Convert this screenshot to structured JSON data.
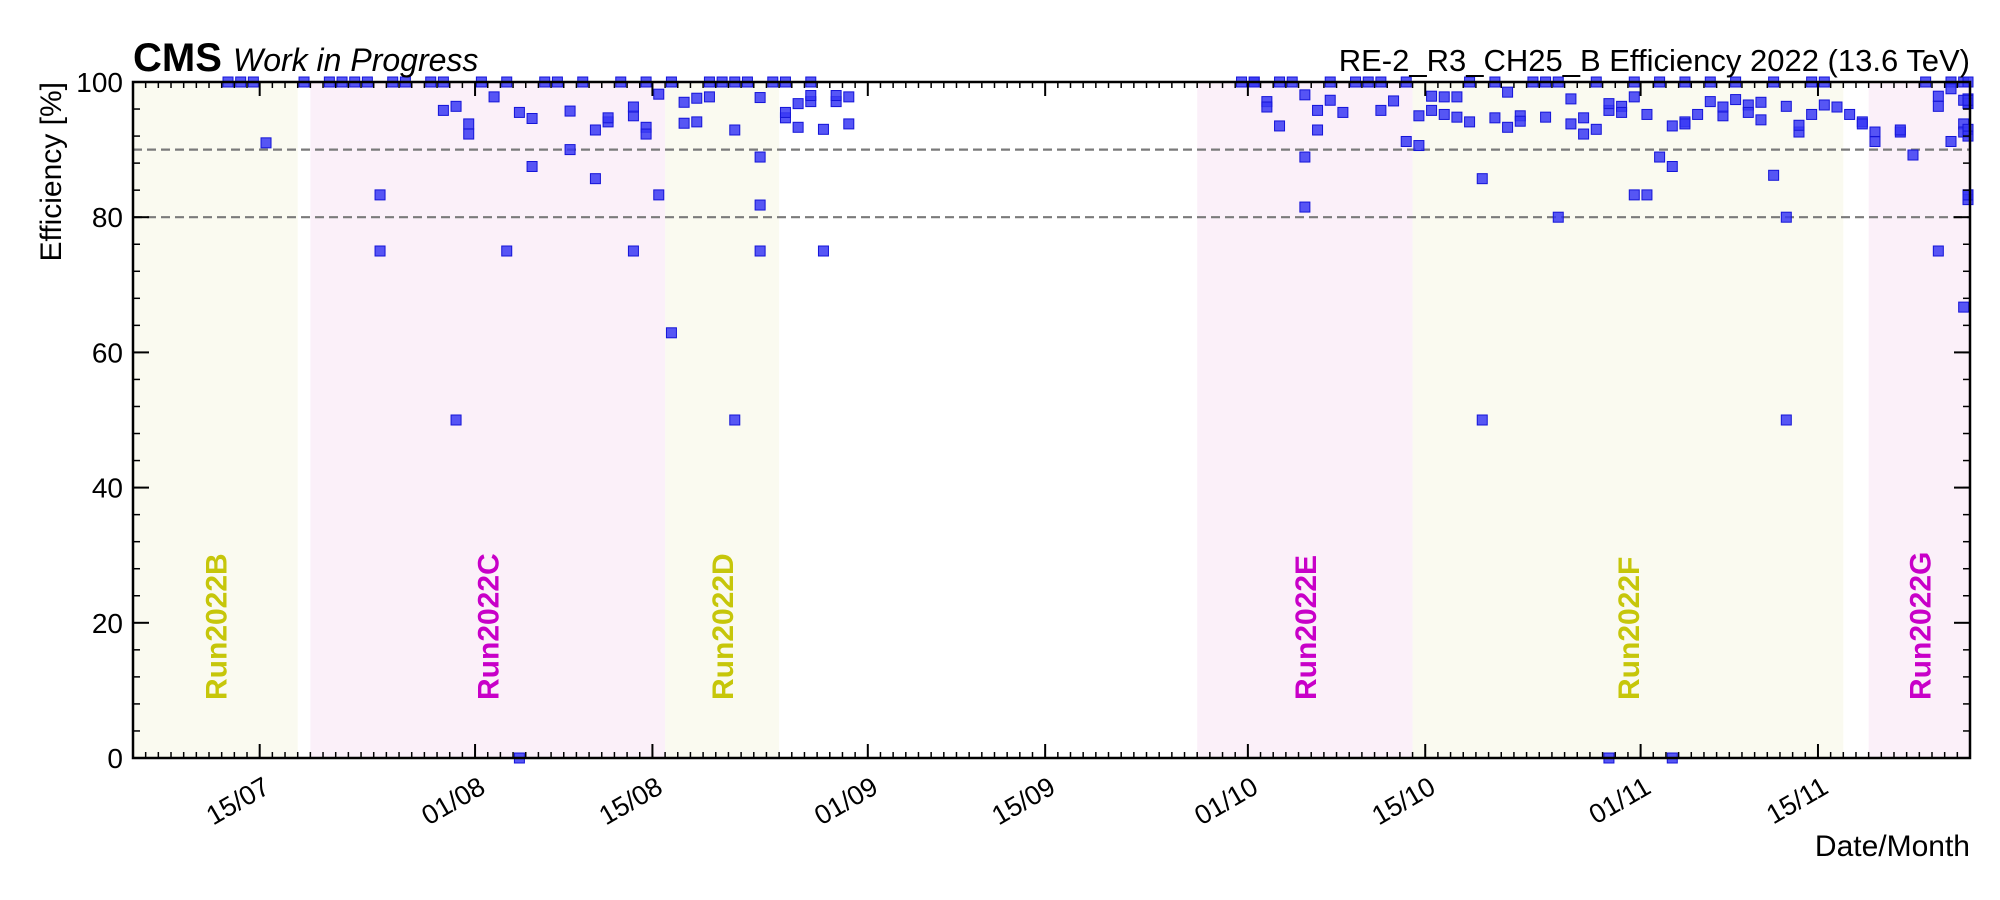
{
  "header": {
    "experiment": "CMS",
    "status": "Work in Progress",
    "right_title": "RE-2_R3_CH25_B Efficiency 2022 (13.6 TeV)"
  },
  "chart_data": {
    "type": "scatter",
    "xlabel": "Date/Month",
    "ylabel": "Efficiency [%]",
    "xlim": [
      "2022-07-05",
      "2022-11-27"
    ],
    "ylim": [
      0,
      100
    ],
    "x_tick_labels": [
      {
        "date": "2022-07-15",
        "label": "15/07"
      },
      {
        "date": "2022-08-01",
        "label": "01/08"
      },
      {
        "date": "2022-08-15",
        "label": "15/08"
      },
      {
        "date": "2022-09-01",
        "label": "01/09"
      },
      {
        "date": "2022-09-15",
        "label": "15/09"
      },
      {
        "date": "2022-10-01",
        "label": "01/10"
      },
      {
        "date": "2022-10-15",
        "label": "15/10"
      },
      {
        "date": "2022-11-01",
        "label": "01/11"
      },
      {
        "date": "2022-11-15",
        "label": "15/11"
      }
    ],
    "y_tick_labels": [
      0,
      20,
      40,
      60,
      80,
      100
    ],
    "reference_lines": [
      80,
      90
    ],
    "runs": [
      {
        "name": "Run2022B",
        "start": "2022-07-05",
        "end": "2022-07-18",
        "color": "#c6c60a",
        "bg": "#fafaf0"
      },
      {
        "name": "Run2022C",
        "start": "2022-07-19",
        "end": "2022-08-16",
        "color": "#c800c8",
        "bg": "#fbf0f9"
      },
      {
        "name": "Run2022D",
        "start": "2022-08-16",
        "end": "2022-08-25",
        "color": "#c6c60a",
        "bg": "#fafaf0"
      },
      {
        "name": "Run2022E",
        "start": "2022-09-27",
        "end": "2022-10-14",
        "color": "#c800c8",
        "bg": "#fbf0f9"
      },
      {
        "name": "Run2022F",
        "start": "2022-10-14",
        "end": "2022-11-17",
        "color": "#c6c60a",
        "bg": "#fafaf0"
      },
      {
        "name": "Run2022G",
        "start": "2022-11-19",
        "end": "2022-11-27",
        "color": "#c800c8",
        "bg": "#fbf0f9"
      }
    ],
    "marker_color": "#3838f5",
    "series": [
      {
        "points": [
          [
            "2022-07-12",
            100
          ],
          [
            "2022-07-13",
            100
          ],
          [
            "2022-07-14",
            100
          ],
          [
            "2022-07-15",
            91
          ],
          [
            "2022-07-18",
            100
          ],
          [
            "2022-07-20",
            100
          ],
          [
            "2022-07-21",
            100
          ],
          [
            "2022-07-22",
            100
          ],
          [
            "2022-07-23",
            100
          ],
          [
            "2022-07-24",
            83.3
          ],
          [
            "2022-07-24",
            75
          ],
          [
            "2022-07-25",
            100
          ],
          [
            "2022-07-26",
            100
          ],
          [
            "2022-07-28",
            100
          ],
          [
            "2022-07-29",
            95.8
          ],
          [
            "2022-07-29",
            100
          ],
          [
            "2022-07-30",
            96.4
          ],
          [
            "2022-07-31",
            92.3
          ],
          [
            "2022-07-31",
            93.8
          ],
          [
            "2022-07-30",
            50
          ],
          [
            "2022-08-01",
            100
          ],
          [
            "2022-08-02",
            97.8
          ],
          [
            "2022-08-03",
            75
          ],
          [
            "2022-08-03",
            100
          ],
          [
            "2022-08-04",
            95.5
          ],
          [
            "2022-08-04",
            0
          ],
          [
            "2022-08-05",
            94.6
          ],
          [
            "2022-08-05",
            87.5
          ],
          [
            "2022-08-06",
            100
          ],
          [
            "2022-08-07",
            100
          ],
          [
            "2022-08-08",
            90
          ],
          [
            "2022-08-08",
            95.7
          ],
          [
            "2022-08-09",
            100
          ],
          [
            "2022-08-10",
            92.9
          ],
          [
            "2022-08-10",
            85.7
          ],
          [
            "2022-08-11",
            94.1
          ],
          [
            "2022-08-11",
            94.7
          ],
          [
            "2022-08-12",
            100
          ],
          [
            "2022-08-13",
            95
          ],
          [
            "2022-08-13",
            96.3
          ],
          [
            "2022-08-13",
            75
          ],
          [
            "2022-08-14",
            93.3
          ],
          [
            "2022-08-14",
            92.3
          ],
          [
            "2022-08-14",
            100
          ],
          [
            "2022-08-15",
            98.2
          ],
          [
            "2022-08-15",
            83.3
          ],
          [
            "2022-08-16",
            100
          ],
          [
            "2022-08-16",
            62.9
          ],
          [
            "2022-08-17",
            93.9
          ],
          [
            "2022-08-17",
            97
          ],
          [
            "2022-08-18",
            97.6
          ],
          [
            "2022-08-18",
            94.1
          ],
          [
            "2022-08-19",
            100
          ],
          [
            "2022-08-19",
            97.8
          ],
          [
            "2022-08-20",
            100
          ],
          [
            "2022-08-21",
            100
          ],
          [
            "2022-08-21",
            92.9
          ],
          [
            "2022-08-21",
            50
          ],
          [
            "2022-08-22",
            100
          ],
          [
            "2022-08-23",
            97.7
          ],
          [
            "2022-08-23",
            88.9
          ],
          [
            "2022-08-23",
            81.8
          ],
          [
            "2022-08-23",
            75
          ],
          [
            "2022-08-24",
            100
          ],
          [
            "2022-08-25",
            94.7
          ],
          [
            "2022-08-25",
            95.5
          ],
          [
            "2022-08-25",
            100
          ],
          [
            "2022-08-26",
            96.8
          ],
          [
            "2022-08-26",
            93.3
          ],
          [
            "2022-08-27",
            97.1
          ],
          [
            "2022-08-27",
            98
          ],
          [
            "2022-08-27",
            100
          ],
          [
            "2022-08-28",
            93
          ],
          [
            "2022-08-28",
            75
          ],
          [
            "2022-08-29",
            97.1
          ],
          [
            "2022-08-29",
            98
          ],
          [
            "2022-08-30",
            93.8
          ],
          [
            "2022-08-30",
            97.8
          ],
          [
            "2022-09-30",
            100
          ],
          [
            "2022-10-01",
            100
          ],
          [
            "2022-10-01",
            100
          ],
          [
            "2022-10-02",
            97.1
          ],
          [
            "2022-10-02",
            96.3
          ],
          [
            "2022-10-03",
            93.5
          ],
          [
            "2022-10-03",
            100
          ],
          [
            "2022-10-04",
            100
          ],
          [
            "2022-10-05",
            98.1
          ],
          [
            "2022-10-05",
            88.9
          ],
          [
            "2022-10-05",
            81.5
          ],
          [
            "2022-10-06",
            95.8
          ],
          [
            "2022-10-06",
            92.9
          ],
          [
            "2022-10-07",
            97.3
          ],
          [
            "2022-10-07",
            100
          ],
          [
            "2022-10-08",
            95.5
          ],
          [
            "2022-10-09",
            100
          ],
          [
            "2022-10-10",
            100
          ],
          [
            "2022-10-11",
            95.8
          ],
          [
            "2022-10-11",
            100
          ],
          [
            "2022-10-12",
            97.2
          ],
          [
            "2022-10-13",
            100
          ],
          [
            "2022-10-13",
            91.2
          ],
          [
            "2022-10-14",
            90.6
          ],
          [
            "2022-10-14",
            95
          ],
          [
            "2022-10-15",
            97.9
          ],
          [
            "2022-10-15",
            95.8
          ],
          [
            "2022-10-16",
            97.8
          ],
          [
            "2022-10-16",
            95.2
          ],
          [
            "2022-10-17",
            94.8
          ],
          [
            "2022-10-17",
            97.8
          ],
          [
            "2022-10-18",
            94.1
          ],
          [
            "2022-10-18",
            100
          ],
          [
            "2022-10-19",
            85.7
          ],
          [
            "2022-10-19",
            50
          ],
          [
            "2022-10-20",
            94.7
          ],
          [
            "2022-10-20",
            100
          ],
          [
            "2022-10-21",
            98.5
          ],
          [
            "2022-10-21",
            93.3
          ],
          [
            "2022-10-22",
            95
          ],
          [
            "2022-10-22",
            94.2
          ],
          [
            "2022-10-23",
            100
          ],
          [
            "2022-10-24",
            100
          ],
          [
            "2022-10-24",
            94.8
          ],
          [
            "2022-10-25",
            80
          ],
          [
            "2022-10-25",
            100
          ],
          [
            "2022-10-26",
            97.5
          ],
          [
            "2022-10-26",
            93.8
          ],
          [
            "2022-10-27",
            92.3
          ],
          [
            "2022-10-27",
            94.7
          ],
          [
            "2022-10-28",
            100
          ],
          [
            "2022-10-28",
            93
          ],
          [
            "2022-10-29",
            95.8
          ],
          [
            "2022-10-29",
            96.8
          ],
          [
            "2022-10-29",
            0
          ],
          [
            "2022-10-30",
            96.4
          ],
          [
            "2022-10-30",
            95.5
          ],
          [
            "2022-10-31",
            100
          ],
          [
            "2022-10-31",
            97.8
          ],
          [
            "2022-10-31",
            83.3
          ],
          [
            "2022-11-01",
            83.3
          ],
          [
            "2022-11-01",
            95.2
          ],
          [
            "2022-11-02",
            100
          ],
          [
            "2022-11-02",
            88.9
          ],
          [
            "2022-11-03",
            0
          ],
          [
            "2022-11-03",
            93.5
          ],
          [
            "2022-11-03",
            87.5
          ],
          [
            "2022-11-04",
            100
          ],
          [
            "2022-11-04",
            94.1
          ],
          [
            "2022-11-04",
            93.8
          ],
          [
            "2022-11-05",
            95.2
          ],
          [
            "2022-11-06",
            97.1
          ],
          [
            "2022-11-06",
            100
          ],
          [
            "2022-11-07",
            95
          ],
          [
            "2022-11-07",
            96.3
          ],
          [
            "2022-11-08",
            97.4
          ],
          [
            "2022-11-08",
            100
          ],
          [
            "2022-11-09",
            96.6
          ],
          [
            "2022-11-09",
            95.5
          ],
          [
            "2022-11-10",
            97
          ],
          [
            "2022-11-10",
            94.4
          ],
          [
            "2022-11-11",
            86.2
          ],
          [
            "2022-11-11",
            100
          ],
          [
            "2022-11-12",
            80
          ],
          [
            "2022-11-12",
            50
          ],
          [
            "2022-11-12",
            96.4
          ],
          [
            "2022-11-13",
            92.6
          ],
          [
            "2022-11-13",
            93.6
          ],
          [
            "2022-11-14",
            100
          ],
          [
            "2022-11-14",
            95.2
          ],
          [
            "2022-11-15",
            96.6
          ],
          [
            "2022-11-15",
            100
          ],
          [
            "2022-11-16",
            96.3
          ],
          [
            "2022-11-17",
            95.2
          ],
          [
            "2022-11-18",
            94.1
          ],
          [
            "2022-11-18",
            93.8
          ],
          [
            "2022-11-19",
            92.6
          ],
          [
            "2022-11-19",
            91.2
          ],
          [
            "2022-11-21",
            92.6
          ],
          [
            "2022-11-21",
            92.9
          ],
          [
            "2022-11-22",
            89.2
          ],
          [
            "2022-11-23",
            100
          ],
          [
            "2022-11-24",
            97.9
          ],
          [
            "2022-11-24",
            96.4
          ],
          [
            "2022-11-24",
            75
          ],
          [
            "2022-11-25",
            100
          ],
          [
            "2022-11-25",
            91.2
          ],
          [
            "2022-11-25",
            99
          ],
          [
            "2022-11-26",
            93.8
          ],
          [
            "2022-11-26",
            66.7
          ],
          [
            "2022-11-26",
            100
          ],
          [
            "2022-11-26",
            92.6
          ],
          [
            "2022-11-26",
            97.3
          ],
          [
            "2022-11-27",
            97
          ],
          [
            "2022-11-27",
            100
          ],
          [
            "2022-11-27",
            93
          ],
          [
            "2022-11-27",
            92
          ],
          [
            "2022-11-27",
            83.3
          ],
          [
            "2022-11-27",
            97.5
          ],
          [
            "2022-11-27",
            96.8
          ],
          [
            "2022-11-27",
            97.3
          ],
          [
            "2022-11-27",
            82.6
          ],
          [
            "2022-11-27",
            83.3
          ]
        ]
      }
    ]
  }
}
